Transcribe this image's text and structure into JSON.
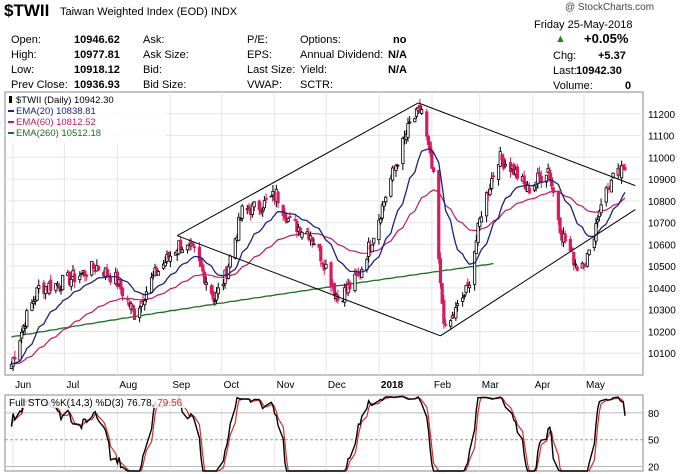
{
  "header": {
    "symbol": "$TWII",
    "name": "Taiwan Weighted Index (EOD)",
    "exchange": "INDX",
    "watermark": "@ StockCharts.com",
    "date": "Friday  25-May-2018",
    "change_pct": "+0.05%",
    "up_arrow_icon": "triangle-up",
    "stats": [
      {
        "label": "Open:",
        "value": "10946.62"
      },
      {
        "label": "High:",
        "value": "10977.81"
      },
      {
        "label": "Low:",
        "value": "10918.12"
      },
      {
        "label": "Prev Close:",
        "value": "10936.93"
      }
    ],
    "col2": [
      "Ask:",
      "Ask Size:",
      "Bid:",
      "Bid Size:"
    ],
    "col3": [
      "P/E:",
      "EPS:",
      "Last Size:",
      "VWAP:"
    ],
    "col4": [
      {
        "label": "Options:",
        "value": "no"
      },
      {
        "label": "Annual Dividend:",
        "value": "N/A"
      },
      {
        "label": "Yield:",
        "value": "N/A"
      },
      {
        "label": "SCTR:",
        "value": ""
      }
    ],
    "right": [
      {
        "label": "Chg:",
        "value": "+5.37"
      },
      {
        "label": "Last:",
        "value": "10942.30"
      },
      {
        "label": "Volume:",
        "value": "0"
      }
    ]
  },
  "chart_data": [
    {
      "type": "candlestick",
      "legend": [
        {
          "text": "$TWII (Daily) 10942.30",
          "color": "#000000"
        },
        {
          "text": "EMA(20) 10838.81",
          "color": "#1a237e"
        },
        {
          "text": "EMA(60) 10812.52",
          "color": "#c2185b"
        },
        {
          "text": "EMA(260) 10512.18",
          "color": "#1b6e1b"
        }
      ],
      "y_ticks": [
        10100,
        10200,
        10300,
        10400,
        10500,
        10600,
        10700,
        10800,
        10900,
        11000,
        11100,
        11200
      ],
      "ylim": [
        10000,
        11300
      ],
      "x_labels": [
        "Jun",
        "Jul",
        "Aug",
        "Sep",
        "Oct",
        "Nov",
        "Dec",
        "2018",
        "Feb",
        "Mar",
        "Apr",
        "May"
      ],
      "close_anchors": [
        [
          "2017-05-31",
          10050
        ],
        [
          "2017-06-08",
          10250
        ],
        [
          "2017-06-16",
          10400
        ],
        [
          "2017-06-28",
          10420
        ],
        [
          "2017-07-10",
          10460
        ],
        [
          "2017-07-20",
          10500
        ],
        [
          "2017-07-31",
          10440
        ],
        [
          "2017-08-11",
          10280
        ],
        [
          "2017-08-22",
          10450
        ],
        [
          "2017-09-06",
          10600
        ],
        [
          "2017-09-15",
          10560
        ],
        [
          "2017-09-27",
          10350
        ],
        [
          "2017-10-03",
          10450
        ],
        [
          "2017-10-13",
          10750
        ],
        [
          "2017-10-25",
          10780
        ],
        [
          "2017-11-02",
          10830
        ],
        [
          "2017-11-10",
          10700
        ],
        [
          "2017-11-22",
          10650
        ],
        [
          "2017-12-01",
          10500
        ],
        [
          "2017-12-08",
          10350
        ],
        [
          "2017-12-20",
          10450
        ],
        [
          "2017-12-29",
          10650
        ],
        [
          "2018-01-08",
          10900
        ],
        [
          "2018-01-19",
          11150
        ],
        [
          "2018-01-26",
          11220
        ],
        [
          "2018-02-02",
          10900
        ],
        [
          "2018-02-06",
          10400
        ],
        [
          "2018-02-09",
          10200
        ],
        [
          "2018-02-22",
          10400
        ],
        [
          "2018-03-02",
          10750
        ],
        [
          "2018-03-12",
          11000
        ],
        [
          "2018-03-20",
          10950
        ],
        [
          "2018-03-29",
          10850
        ],
        [
          "2018-04-10",
          10950
        ],
        [
          "2018-04-18",
          10650
        ],
        [
          "2018-04-27",
          10500
        ],
        [
          "2018-05-04",
          10550
        ],
        [
          "2018-05-11",
          10800
        ],
        [
          "2018-05-18",
          10900
        ],
        [
          "2018-05-25",
          10942
        ]
      ],
      "last_close": 10942.3,
      "ema20_last": 10838.81,
      "ema60_last": 10812.52,
      "ema260_last": 10512.18,
      "trendlines": [
        {
          "from": [
            "2017-09-05",
            10640
          ],
          "to": [
            "2018-01-24",
            11250
          ]
        },
        {
          "from": [
            "2018-01-24",
            11250
          ],
          "to": [
            "2018-05-31",
            10870
          ]
        },
        {
          "from": [
            "2017-09-05",
            10640
          ],
          "to": [
            "2018-02-06",
            10180
          ]
        },
        {
          "from": [
            "2018-02-06",
            10180
          ],
          "to": [
            "2018-05-31",
            10760
          ]
        }
      ]
    },
    {
      "type": "line",
      "title": "Full STO %K(14,3) %D(3) 76.78, 79.56",
      "title_main": "Full STO %K(14,3) %D(3)",
      "k_last": "76.78",
      "d_last": "79.56",
      "y_ticks": [
        20,
        50,
        80
      ],
      "ylim": [
        15,
        100
      ],
      "series": [
        {
          "name": "%K(14,3)",
          "last": 76.78
        },
        {
          "name": "%D(3)",
          "last": 79.56
        }
      ]
    }
  ],
  "colors": {
    "grid": "#e6e6e6",
    "axis": "#888888",
    "candle_up": "#000000",
    "candle_down": "#d81b60",
    "ema20": "#1a237e",
    "ema60": "#c2185b",
    "ema260": "#1b6e1b",
    "trend": "#000000",
    "sto_k": "#000000",
    "sto_d": "#d32f2f"
  }
}
